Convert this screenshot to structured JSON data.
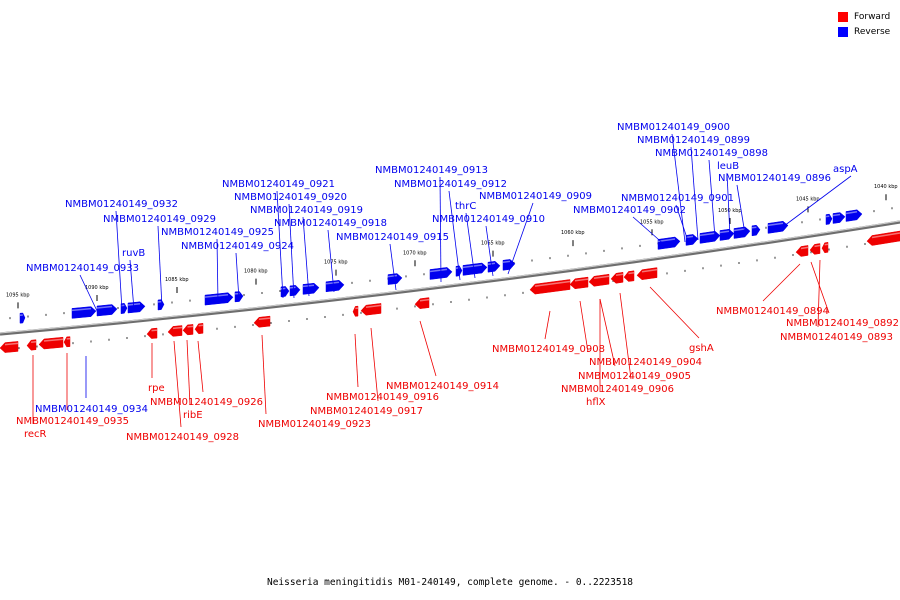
{
  "caption": "Neisseria meningitidis M01-240149, complete genome. - 0..2223518",
  "legend": [
    {
      "label": "Forward",
      "color": "#ff0000"
    },
    {
      "label": "Reverse",
      "color": "#0000ff"
    }
  ],
  "colors": {
    "forward": "#ee0000",
    "reverse": "#0000ee",
    "backbone": "#888888"
  },
  "ticks": [
    "1095 kbp",
    "1090 kbp",
    "1085 kbp",
    "1080 kbp",
    "1075 kbp",
    "1070 kbp",
    "1065 kbp",
    "1060 kbp",
    "1055 kbp",
    "1050 kbp",
    "1045 kbp",
    "1040 kbp"
  ],
  "reverse_labels": [
    "NMBM01240149_0900",
    "NMBM01240149_0899",
    "NMBM01240149_0898",
    "leuB",
    "NMBM01240149_0896",
    "aspA",
    "NMBM01240149_0901",
    "NMBM01240149_0902",
    "NMBM01240149_0913",
    "NMBM01240149_0912",
    "NMBM01240149_0909",
    "thrC",
    "NMBM01240149_0910",
    "NMBM01240149_0915",
    "NMBM01240149_0921",
    "NMBM01240149_0920",
    "NMBM01240149_0919",
    "NMBM01240149_0918",
    "NMBM01240149_0925",
    "NMBM01240149_0924",
    "NMBM01240149_0932",
    "NMBM01240149_0929",
    "ruvB",
    "NMBM01240149_0933",
    "NMBM01240149_0934"
  ],
  "forward_labels": [
    "NMBM01240149_0935",
    "recR",
    "rpe",
    "NMBM01240149_0926",
    "ribE",
    "NMBM01240149_0928",
    "NMBM01240149_0923",
    "NMBM01240149_0916",
    "NMBM01240149_0917",
    "NMBM01240149_0914",
    "NMBM01240149_0908",
    "NMBM01240149_0904",
    "NMBM01240149_0905",
    "NMBM01240149_0906",
    "hflX",
    "gshA",
    "NMBM01240149_0894",
    "NMBM01240149_0892",
    "NMBM01240149_0893"
  ]
}
